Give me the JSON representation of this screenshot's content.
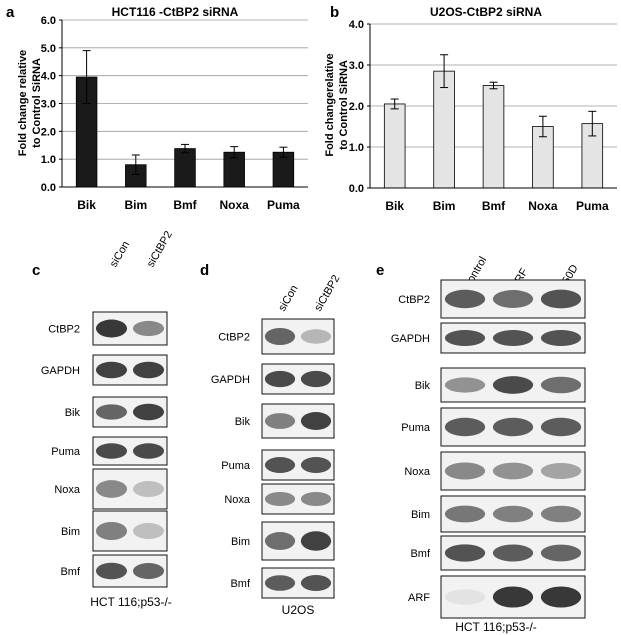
{
  "chart_data": [
    {
      "panel": "a",
      "type": "bar",
      "title": "HCT116 -CtBP2 siRNA",
      "ylabel": "Fold change relative to Control SiRNA",
      "ylabel_lines": [
        "Fold change relative",
        "to Control SiRNA"
      ],
      "categories": [
        "Bik",
        "Bim",
        "Bmf",
        "Noxa",
        "Puma"
      ],
      "values": [
        3.95,
        0.8,
        1.38,
        1.25,
        1.25
      ],
      "errors": [
        0.95,
        0.35,
        0.15,
        0.2,
        0.18
      ],
      "ylim": [
        0,
        6
      ],
      "yticks": [
        "0.0",
        "1.0",
        "2.0",
        "3.0",
        "4.0",
        "5.0",
        "6.0"
      ],
      "bar_color": "#1a1a1a",
      "grid": true
    },
    {
      "panel": "b",
      "type": "bar",
      "title": "U2OS-CtBP2 siRNA",
      "ylabel": "Fold changerelative to Control SiRNA",
      "ylabel_lines": [
        "Fold changerelative",
        "to Control SiRNA"
      ],
      "categories": [
        "Bik",
        "Bim",
        "Bmf",
        "Noxa",
        "Puma"
      ],
      "values": [
        2.05,
        2.85,
        2.5,
        1.5,
        1.57
      ],
      "errors": [
        0.12,
        0.4,
        0.08,
        0.25,
        0.3
      ],
      "ylim": [
        0,
        4
      ],
      "yticks": [
        "0.0",
        "1.0",
        "2.0",
        "3.0",
        "4.0"
      ],
      "bar_color": "#e4e4e4",
      "grid": true
    }
  ],
  "blots": [
    {
      "panel": "c",
      "lanes": [
        "siCon",
        "siCtBP2"
      ],
      "rows": [
        {
          "label": "CtBP2",
          "intensities": [
            1.0,
            0.55
          ]
        },
        {
          "label": "GAPDH",
          "intensities": [
            0.95,
            0.95
          ]
        },
        {
          "label": "Bik",
          "intensities": [
            0.75,
            0.95
          ]
        },
        {
          "label": "Puma",
          "intensities": [
            0.9,
            0.9
          ]
        },
        {
          "label": "Noxa",
          "intensities": [
            0.55,
            0.25
          ]
        },
        {
          "label": "Bim",
          "intensities": [
            0.6,
            0.25
          ]
        },
        {
          "label": "Bmf",
          "intensities": [
            0.85,
            0.75
          ]
        }
      ],
      "caption": "HCT 116;p53-/-"
    },
    {
      "panel": "d",
      "lanes": [
        "siCon",
        "siCtBP2"
      ],
      "rows": [
        {
          "label": "CtBP2",
          "intensities": [
            0.75,
            0.3
          ]
        },
        {
          "label": "GAPDH",
          "intensities": [
            0.9,
            0.9
          ]
        },
        {
          "label": "Bik",
          "intensities": [
            0.6,
            0.95
          ]
        },
        {
          "label": "Puma",
          "intensities": [
            0.85,
            0.85
          ]
        },
        {
          "label": "Noxa",
          "intensities": [
            0.55,
            0.55
          ]
        },
        {
          "label": "Bim",
          "intensities": [
            0.7,
            0.95
          ]
        },
        {
          "label": "Bmf",
          "intensities": [
            0.8,
            0.85
          ]
        }
      ],
      "caption": "U2OS"
    },
    {
      "panel": "e",
      "lanes": [
        "Control",
        "ARF",
        "L50D"
      ],
      "rows": [
        {
          "label": "CtBP2",
          "intensities": [
            0.8,
            0.7,
            0.85
          ]
        },
        {
          "label": "GAPDH",
          "intensities": [
            0.85,
            0.85,
            0.85
          ]
        },
        {
          "label": "Bik",
          "intensities": [
            0.5,
            0.9,
            0.7
          ]
        },
        {
          "label": "Puma",
          "intensities": [
            0.8,
            0.8,
            0.8
          ]
        },
        {
          "label": "Noxa",
          "intensities": [
            0.55,
            0.5,
            0.4
          ]
        },
        {
          "label": "Bim",
          "intensities": [
            0.65,
            0.6,
            0.6
          ]
        },
        {
          "label": "Bmf",
          "intensities": [
            0.85,
            0.8,
            0.75
          ]
        },
        {
          "label": "ARF",
          "intensities": [
            0.05,
            1.0,
            1.0
          ]
        }
      ],
      "caption": "HCT 116;p53-/-"
    }
  ]
}
